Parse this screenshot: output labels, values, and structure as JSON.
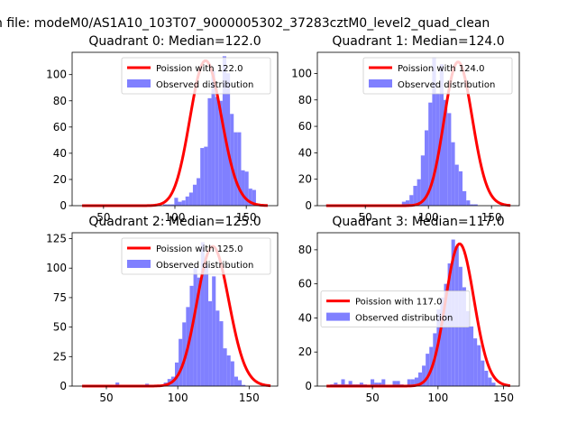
{
  "suptitle": "n file: modeM0/AS1A10_103T07_9000005302_37283cztM0_level2_quad_clean",
  "colors": {
    "fit": "#ff0000",
    "hist": "#8080ff",
    "axis": "#000000"
  },
  "chart_data": [
    {
      "type": "bar",
      "title": "Quadrant 0: Median=122.0",
      "xlabel": "",
      "ylabel": "",
      "xlim": [
        28,
        172
      ],
      "ylim": [
        0,
        117
      ],
      "xticks": [
        50,
        100,
        150
      ],
      "yticks": [
        0,
        20,
        40,
        60,
        80,
        100
      ],
      "legend": [
        "Poission with 122.0",
        "Observed distribution"
      ],
      "legend_loc": "upper right",
      "hist": {
        "bin_width": 2.6,
        "edges_start": 45,
        "counts": [
          0,
          0,
          0,
          0,
          0,
          0,
          0,
          0,
          0,
          0,
          0,
          0,
          0,
          0,
          0,
          0,
          0,
          0,
          1,
          1,
          1,
          6,
          3,
          4,
          7,
          10,
          16,
          21,
          44,
          45,
          82,
          103,
          83,
          80,
          114,
          101,
          70,
          56,
          56,
          27,
          26,
          13,
          12,
          1,
          0,
          1,
          0,
          0,
          0,
          0
        ]
      },
      "fit": {
        "mean": 122.0,
        "x_start": 35,
        "x_end": 165
      }
    },
    {
      "type": "bar",
      "title": "Quadrant 1: Median=124.0",
      "xlabel": "",
      "ylabel": "",
      "xlim": [
        12,
        172
      ],
      "ylim": [
        0,
        116
      ],
      "xticks": [
        50,
        100,
        150
      ],
      "yticks": [
        0,
        20,
        40,
        60,
        80,
        100
      ],
      "legend": [
        "Poission with 124.0",
        "Observed distribution"
      ],
      "legend_loc": "upper right",
      "hist": {
        "bin_width": 3.0,
        "edges_start": 19,
        "counts": [
          1,
          1,
          0,
          0,
          0,
          0,
          0,
          0,
          0,
          0,
          0,
          0,
          1,
          0,
          0,
          0,
          0,
          1,
          1,
          0,
          3,
          4,
          8,
          15,
          20,
          38,
          57,
          78,
          112,
          85,
          107,
          80,
          70,
          48,
          31,
          26,
          11,
          4,
          1,
          1,
          0,
          0,
          0,
          0,
          0,
          0,
          0,
          0,
          0,
          0
        ]
      },
      "fit": {
        "mean": 124.0,
        "x_start": 19,
        "x_end": 165
      }
    },
    {
      "type": "bar",
      "title": "Quadrant 2: Median=125.0",
      "xlabel": "",
      "ylabel": "",
      "xlim": [
        26,
        170
      ],
      "ylim": [
        0,
        130
      ],
      "xticks": [
        50,
        100,
        150
      ],
      "yticks": [
        0,
        25,
        50,
        75,
        100,
        125
      ],
      "legend": [
        "Poission with 125.0",
        "Observed distribution"
      ],
      "legend_loc": "upper right",
      "hist": {
        "bin_width": 2.6,
        "edges_start": 33,
        "counts": [
          0,
          0,
          0,
          0,
          0,
          0,
          0,
          0,
          0,
          3,
          0,
          0,
          0,
          0,
          0,
          0,
          0,
          2,
          0,
          0,
          0,
          1,
          3,
          6,
          8,
          20,
          40,
          54,
          67,
          85,
          100,
          92,
          122,
          103,
          72,
          93,
          64,
          55,
          32,
          26,
          21,
          8,
          5,
          1,
          0,
          0,
          0,
          0,
          0,
          0
        ]
      },
      "fit": {
        "mean": 125.0,
        "x_start": 33,
        "x_end": 165
      }
    },
    {
      "type": "bar",
      "title": "Quadrant 3: Median=117.0",
      "xlabel": "",
      "ylabel": "",
      "xlim": [
        8,
        162
      ],
      "ylim": [
        0,
        90
      ],
      "xticks": [
        50,
        100,
        150
      ],
      "yticks": [
        0,
        20,
        40,
        60,
        80
      ],
      "legend": [
        "Poission with 117.0",
        "Observed distribution"
      ],
      "legend_loc": "center left",
      "hist": {
        "bin_width": 2.8,
        "edges_start": 15,
        "counts": [
          0,
          1,
          2,
          1,
          4,
          1,
          3,
          1,
          1,
          2,
          1,
          0,
          4,
          2,
          2,
          4,
          0,
          0,
          3,
          3,
          1,
          0,
          4,
          4,
          5,
          8,
          12,
          19,
          23,
          31,
          45,
          52,
          60,
          72,
          86,
          82,
          70,
          58,
          44,
          35,
          28,
          24,
          15,
          9,
          5,
          2,
          0,
          0,
          0,
          0
        ]
      },
      "fit": {
        "mean": 117.0,
        "x_start": 15,
        "x_end": 155
      }
    }
  ]
}
